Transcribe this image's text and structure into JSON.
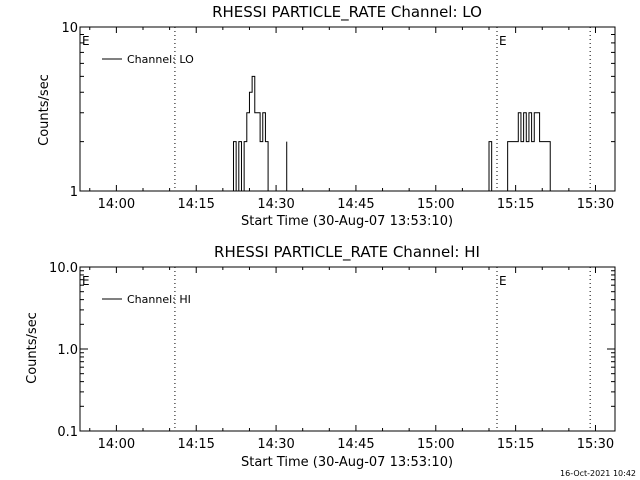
{
  "page": {
    "timestamp": "16-Oct-2021 10:42"
  },
  "chart_data": [
    {
      "type": "line",
      "title": "RHESSI PARTICLE_RATE Channel: LO",
      "xlabel": "Start Time (30-Aug-07 13:53:10)",
      "ylabel": "Counts/sec",
      "y_scale": "log",
      "ylim": [
        1,
        10
      ],
      "xlim": [
        "13:53:10",
        "15:33:40"
      ],
      "y_tick_labels": [
        "1",
        "10"
      ],
      "x_tick_labels": [
        "14:00",
        "14:15",
        "14:30",
        "14:45",
        "15:00",
        "15:15",
        "15:30"
      ],
      "legend": {
        "entries": [
          "Channel: LO"
        ],
        "position": "top-left"
      },
      "markers": [
        {
          "time": "13:53:10",
          "label": "E"
        },
        {
          "time": "14:11:00",
          "label": ""
        },
        {
          "time": "15:11:30",
          "label": "E"
        },
        {
          "time": "15:29:00",
          "label": ""
        }
      ],
      "series": [
        {
          "name": "Channel: LO",
          "points": [
            [
              "14:22:00",
              1
            ],
            [
              "14:22:00",
              2
            ],
            [
              "14:22:30",
              2
            ],
            [
              "14:22:30",
              1
            ],
            [
              "14:23:00",
              1
            ],
            [
              "14:23:00",
              2
            ],
            [
              "14:23:30",
              2
            ],
            [
              "14:23:30",
              1
            ],
            [
              "14:24:00",
              1
            ],
            [
              "14:24:00",
              2
            ],
            [
              "14:24:30",
              2
            ],
            [
              "14:24:30",
              3
            ],
            [
              "14:25:00",
              3
            ],
            [
              "14:25:00",
              4
            ],
            [
              "14:25:30",
              4
            ],
            [
              "14:25:30",
              5
            ],
            [
              "14:26:00",
              5
            ],
            [
              "14:26:00",
              3
            ],
            [
              "14:27:00",
              3
            ],
            [
              "14:27:00",
              2
            ],
            [
              "14:27:30",
              2
            ],
            [
              "14:27:30",
              3
            ],
            [
              "14:28:00",
              3
            ],
            [
              "14:28:00",
              2
            ],
            [
              "14:28:30",
              2
            ],
            [
              "14:28:30",
              1
            ],
            [
              "14:29:00",
              1
            ]
          ]
        },
        {
          "name": "Channel: LO",
          "points": [
            [
              "14:32:00",
              2
            ],
            [
              "14:32:00",
              1
            ]
          ]
        },
        {
          "name": "Channel: LO",
          "points": [
            [
              "15:10:00",
              1
            ],
            [
              "15:10:00",
              2
            ],
            [
              "15:10:30",
              2
            ],
            [
              "15:10:30",
              1
            ]
          ]
        },
        {
          "name": "Channel: LO",
          "points": [
            [
              "15:13:30",
              1
            ],
            [
              "15:13:30",
              2
            ],
            [
              "15:15:30",
              2
            ],
            [
              "15:15:30",
              3
            ],
            [
              "15:16:00",
              3
            ],
            [
              "15:16:00",
              2
            ],
            [
              "15:16:30",
              2
            ],
            [
              "15:16:30",
              3
            ],
            [
              "15:17:00",
              3
            ],
            [
              "15:17:00",
              2
            ],
            [
              "15:17:30",
              2
            ],
            [
              "15:17:30",
              3
            ],
            [
              "15:18:00",
              3
            ],
            [
              "15:18:00",
              2
            ],
            [
              "15:18:30",
              2
            ],
            [
              "15:18:30",
              3
            ],
            [
              "15:19:30",
              3
            ],
            [
              "15:19:30",
              2
            ],
            [
              "15:21:30",
              2
            ],
            [
              "15:21:30",
              1
            ],
            [
              "15:22:00",
              1
            ]
          ]
        }
      ]
    },
    {
      "type": "line",
      "title": "RHESSI PARTICLE_RATE Channel: HI",
      "xlabel": "Start Time (30-Aug-07 13:53:10)",
      "ylabel": "Counts/sec",
      "y_scale": "log",
      "ylim": [
        0.1,
        10
      ],
      "xlim": [
        "13:53:10",
        "15:33:40"
      ],
      "y_tick_labels": [
        "0.1",
        "1.0",
        "10.0"
      ],
      "x_tick_labels": [
        "14:00",
        "14:15",
        "14:30",
        "14:45",
        "15:00",
        "15:15",
        "15:30"
      ],
      "legend": {
        "entries": [
          "Channel: HI"
        ],
        "position": "top-left"
      },
      "markers": [
        {
          "time": "13:53:10",
          "label": "E"
        },
        {
          "time": "14:11:00",
          "label": ""
        },
        {
          "time": "15:11:30",
          "label": "E"
        },
        {
          "time": "15:29:00",
          "label": ""
        }
      ],
      "series": []
    }
  ]
}
